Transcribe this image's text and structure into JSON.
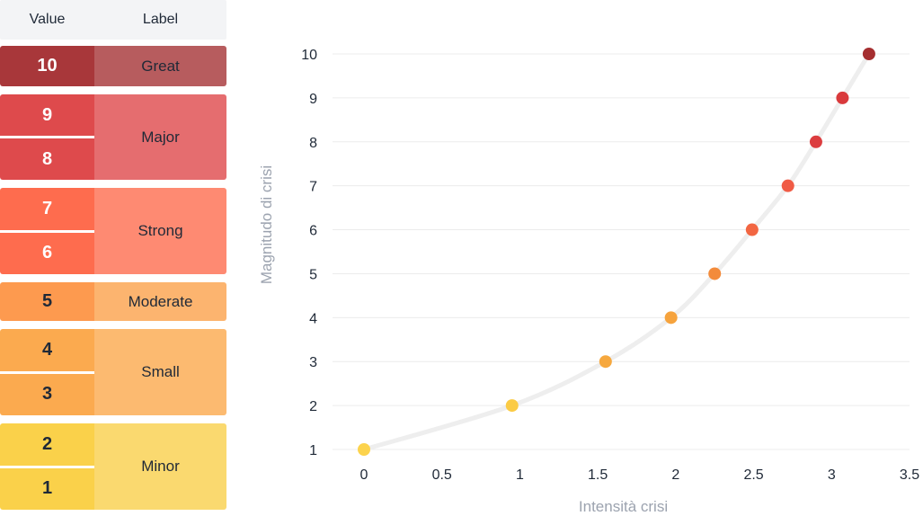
{
  "table": {
    "headers": {
      "value": "Value",
      "label": "Label"
    },
    "groups": [
      {
        "values": [
          "10"
        ],
        "label": "Great",
        "value_color": "#a8373a",
        "label_color": "#b75c5e",
        "value_text": "white"
      },
      {
        "values": [
          "9",
          "8"
        ],
        "label": "Major",
        "value_color": "#de4a4c",
        "label_color": "#e56d6f",
        "value_text": "white"
      },
      {
        "values": [
          "7",
          "6"
        ],
        "label": "Strong",
        "value_color": "#fe6c4e",
        "label_color": "#fe8a72",
        "value_text": "white"
      },
      {
        "values": [
          "5"
        ],
        "label": "Moderate",
        "value_color": "#fd9a4f",
        "label_color": "#fcb46f",
        "value_text": "dark"
      },
      {
        "values": [
          "4",
          "3"
        ],
        "label": "Small",
        "value_color": "#fbaa4f",
        "label_color": "#fcba70",
        "value_text": "dark"
      },
      {
        "values": [
          "2",
          "1"
        ],
        "label": "Minor",
        "value_color": "#fad14a",
        "label_color": "#fad96f",
        "value_text": "dark"
      }
    ]
  },
  "chart_data": {
    "type": "scatter",
    "title": "",
    "xlabel": "Intensità crisi",
    "ylabel": "Magnitudo di crisi",
    "xlim": [
      0,
      3.5
    ],
    "ylim": [
      1,
      10
    ],
    "x_ticks": [
      "0",
      "0.5",
      "1",
      "1.5",
      "2",
      "2.5",
      "3",
      "3.5"
    ],
    "y_ticks": [
      "1",
      "2",
      "3",
      "4",
      "5",
      "6",
      "7",
      "8",
      "9",
      "10"
    ],
    "grid": true,
    "trend_line": "exponential",
    "points": [
      {
        "x": 0.0,
        "y": 1,
        "color": "#fcd34d"
      },
      {
        "x": 0.95,
        "y": 2,
        "color": "#fbcb45"
      },
      {
        "x": 1.55,
        "y": 3,
        "color": "#f6a83e"
      },
      {
        "x": 1.97,
        "y": 4,
        "color": "#f6a33d"
      },
      {
        "x": 2.25,
        "y": 5,
        "color": "#f38b3b"
      },
      {
        "x": 2.49,
        "y": 6,
        "color": "#f26642"
      },
      {
        "x": 2.72,
        "y": 7,
        "color": "#f05b45"
      },
      {
        "x": 2.9,
        "y": 8,
        "color": "#dc3d3f"
      },
      {
        "x": 3.07,
        "y": 9,
        "color": "#d93a3c"
      },
      {
        "x": 3.24,
        "y": 10,
        "color": "#a52e30"
      }
    ]
  }
}
